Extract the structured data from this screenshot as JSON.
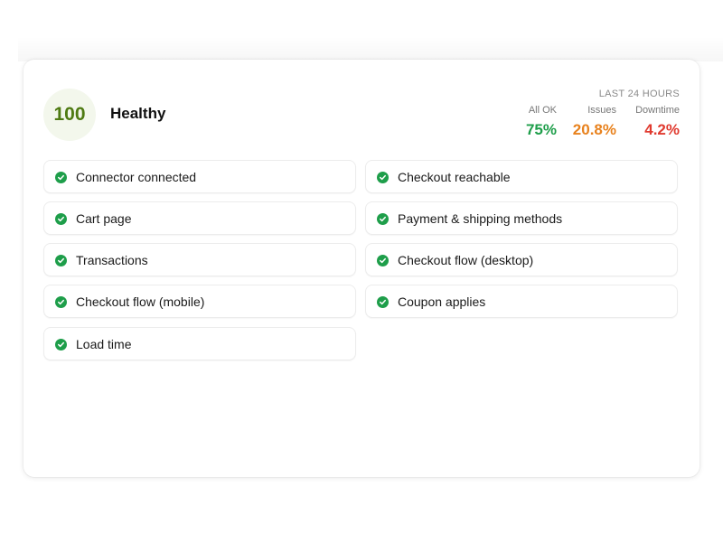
{
  "health": {
    "score": "100",
    "status": "Healthy",
    "score_color": "#4e7a12"
  },
  "metrics": {
    "period_label": "LAST 24 HOURS",
    "all_ok": {
      "label": "All OK",
      "value": "75%",
      "color": "#1e9e4a"
    },
    "issues": {
      "label": "Issues",
      "value": "20.8%",
      "color": "#e8821e"
    },
    "downtime": {
      "label": "Downtime",
      "value": "4.2%",
      "color": "#e03a2f"
    }
  },
  "checks": [
    {
      "label": "Connector connected",
      "status": "passed",
      "icon": "check-circle-icon"
    },
    {
      "label": "Checkout reachable",
      "status": "passed",
      "icon": "check-circle-icon"
    },
    {
      "label": "Cart page",
      "status": "passed",
      "icon": "check-circle-icon"
    },
    {
      "label": "Payment & shipping methods",
      "status": "passed",
      "icon": "check-circle-icon"
    },
    {
      "label": "Transactions",
      "status": "passed",
      "icon": "check-circle-icon"
    },
    {
      "label": "Checkout flow (desktop)",
      "status": "passed",
      "icon": "check-circle-icon"
    },
    {
      "label": "Checkout flow (mobile)",
      "status": "passed",
      "icon": "check-circle-icon"
    },
    {
      "label": "Coupon applies",
      "status": "passed",
      "icon": "check-circle-icon"
    },
    {
      "label": "Load time",
      "status": "passed",
      "icon": "check-circle-icon"
    }
  ],
  "colors": {
    "success": "#1e9e4a"
  }
}
